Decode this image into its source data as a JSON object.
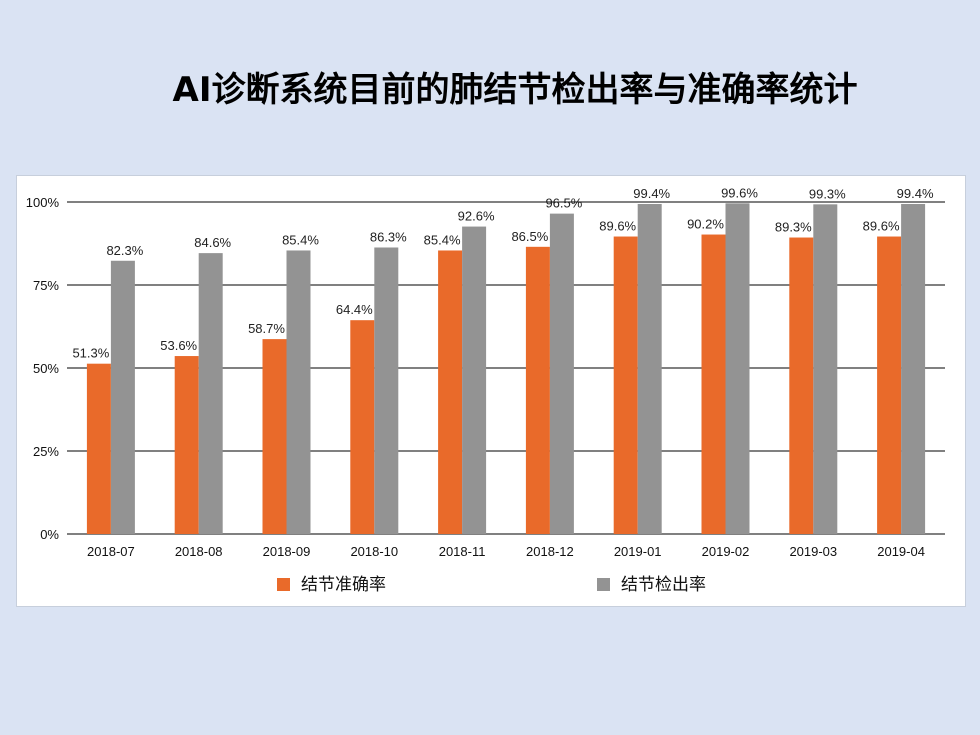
{
  "slide": {
    "title": "AI诊断系统目前的肺结节检出率与准确率统计"
  },
  "colors": {
    "background": "#dae3f3",
    "accuracy": "#e96a2a",
    "detection": "#939393",
    "grid": "#000000"
  },
  "chart_data": {
    "type": "bar",
    "title": "",
    "xlabel": "",
    "ylabel": "",
    "ylim": [
      0,
      100
    ],
    "yticks": [
      "0%",
      "25%",
      "50%",
      "75%",
      "100%"
    ],
    "ytick_values": [
      0,
      25,
      50,
      75,
      100
    ],
    "grid": true,
    "legend_position": "bottom",
    "categories": [
      "2018-07",
      "2018-08",
      "2018-09",
      "2018-10",
      "2018-11",
      "2018-12",
      "2019-01",
      "2019-02",
      "2019-03",
      "2019-04"
    ],
    "series": [
      {
        "name": "结节准确率",
        "color": "#e96a2a",
        "values": [
          51.3,
          53.6,
          58.7,
          64.4,
          85.4,
          86.5,
          89.6,
          90.2,
          89.3,
          89.6
        ],
        "labels": [
          "51.3%",
          "53.6%",
          "58.7%",
          "64.4%",
          "85.4%",
          "86.5%",
          "89.6%",
          "90.2%",
          "89.3%",
          "89.6%"
        ]
      },
      {
        "name": "结节检出率",
        "color": "#939393",
        "values": [
          82.3,
          84.6,
          85.4,
          86.3,
          92.6,
          96.5,
          99.4,
          99.6,
          99.3,
          99.4
        ],
        "labels": [
          "82.3%",
          "84.6%",
          "85.4%",
          "86.3%",
          "92.6%",
          "96.5%",
          "99.4%",
          "99.6%",
          "99.3%",
          "99.4%"
        ]
      }
    ]
  }
}
